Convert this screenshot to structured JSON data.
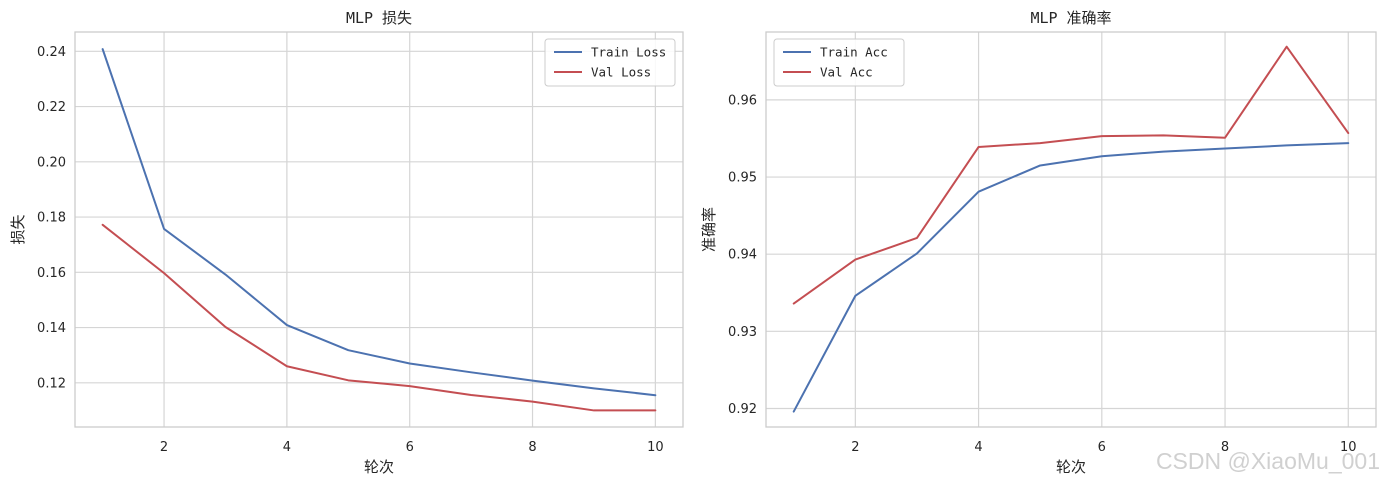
{
  "watermark": "CSDN @XiaoMu_001",
  "chart_data": [
    {
      "type": "line",
      "title": "MLP 损失",
      "xlabel": "轮次",
      "ylabel": "损失",
      "x": [
        1,
        2,
        3,
        4,
        5,
        6,
        7,
        8,
        9,
        10
      ],
      "xlim": [
        0.55,
        10.45
      ],
      "ylim": [
        0.104,
        0.247
      ],
      "xticks": [
        2,
        4,
        6,
        8,
        10
      ],
      "yticks": [
        0.12,
        0.14,
        0.16,
        0.18,
        0.2,
        0.22,
        0.24
      ],
      "xtick_labels": [
        "2",
        "4",
        "6",
        "8",
        "10"
      ],
      "ytick_labels": [
        "0.12",
        "0.14",
        "0.16",
        "0.18",
        "0.20",
        "0.22",
        "0.24"
      ],
      "grid": true,
      "legend_position": "top-right",
      "series": [
        {
          "name": "Train Loss",
          "color": "#4c72b0",
          "values": [
            0.2408,
            0.1757,
            0.1592,
            0.1409,
            0.1318,
            0.127,
            0.1238,
            0.1208,
            0.118,
            0.1155
          ]
        },
        {
          "name": "Val Loss",
          "color": "#c44e52",
          "values": [
            0.1772,
            0.1597,
            0.1402,
            0.126,
            0.1209,
            0.1188,
            0.1156,
            0.1132,
            0.11,
            0.11
          ]
        }
      ]
    },
    {
      "type": "line",
      "title": "MLP 准确率",
      "xlabel": "轮次",
      "ylabel": "准确率",
      "x": [
        1,
        2,
        3,
        4,
        5,
        6,
        7,
        8,
        9,
        10
      ],
      "xlim": [
        0.55,
        10.45
      ],
      "ylim": [
        0.9176,
        0.9688
      ],
      "xticks": [
        2,
        4,
        6,
        8,
        10
      ],
      "yticks": [
        0.92,
        0.93,
        0.94,
        0.95,
        0.96
      ],
      "xtick_labels": [
        "2",
        "4",
        "6",
        "8",
        "10"
      ],
      "ytick_labels": [
        "0.92",
        "0.93",
        "0.94",
        "0.95",
        "0.96"
      ],
      "grid": true,
      "legend_position": "top-left",
      "series": [
        {
          "name": "Train Acc",
          "color": "#4c72b0",
          "values": [
            0.9196,
            0.9346,
            0.9401,
            0.9481,
            0.9515,
            0.9527,
            0.9533,
            0.9537,
            0.9541,
            0.9544
          ]
        },
        {
          "name": "Val Acc",
          "color": "#c44e52",
          "values": [
            0.9336,
            0.9393,
            0.9421,
            0.9539,
            0.9544,
            0.9553,
            0.9554,
            0.9551,
            0.9669,
            0.9557
          ]
        }
      ]
    }
  ]
}
